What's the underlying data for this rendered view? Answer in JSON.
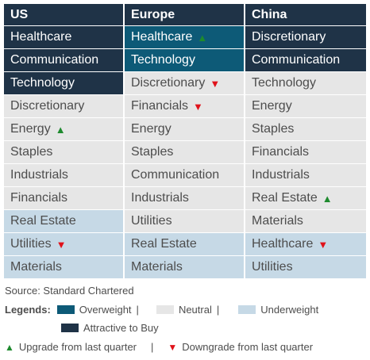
{
  "columns": [
    "US",
    "Europe",
    "China"
  ],
  "rows": [
    [
      {
        "label": "Healthcare",
        "status": "attr"
      },
      {
        "label": "Healthcare",
        "status": "over",
        "change": "up"
      },
      {
        "label": "Discretionary",
        "status": "attr"
      }
    ],
    [
      {
        "label": "Communication",
        "status": "attr"
      },
      {
        "label": "Technology",
        "status": "over"
      },
      {
        "label": "Communication",
        "status": "attr"
      }
    ],
    [
      {
        "label": "Technology",
        "status": "attr"
      },
      {
        "label": "Discretionary",
        "status": "neu",
        "change": "down"
      },
      {
        "label": "Technology",
        "status": "neu"
      }
    ],
    [
      {
        "label": "Discretionary",
        "status": "neu"
      },
      {
        "label": "Financials",
        "status": "neu",
        "change": "down"
      },
      {
        "label": "Energy",
        "status": "neu"
      }
    ],
    [
      {
        "label": "Energy",
        "status": "neu",
        "change": "up"
      },
      {
        "label": "Energy",
        "status": "neu"
      },
      {
        "label": "Staples",
        "status": "neu"
      }
    ],
    [
      {
        "label": "Staples",
        "status": "neu"
      },
      {
        "label": "Staples",
        "status": "neu"
      },
      {
        "label": "Financials",
        "status": "neu"
      }
    ],
    [
      {
        "label": "Industrials",
        "status": "neu"
      },
      {
        "label": "Communication",
        "status": "neu"
      },
      {
        "label": "Industrials",
        "status": "neu"
      }
    ],
    [
      {
        "label": "Financials",
        "status": "neu"
      },
      {
        "label": "Industrials",
        "status": "neu"
      },
      {
        "label": "Real Estate",
        "status": "neu",
        "change": "up"
      }
    ],
    [
      {
        "label": "Real Estate",
        "status": "under"
      },
      {
        "label": "Utilities",
        "status": "neu"
      },
      {
        "label": "Materials",
        "status": "neu"
      }
    ],
    [
      {
        "label": "Utilities",
        "status": "under",
        "change": "down"
      },
      {
        "label": "Real Estate",
        "status": "under"
      },
      {
        "label": "Healthcare",
        "status": "under",
        "change": "down"
      }
    ],
    [
      {
        "label": "Materials",
        "status": "under"
      },
      {
        "label": "Materials",
        "status": "under"
      },
      {
        "label": "Utilities",
        "status": "under"
      }
    ]
  ],
  "source": "Source: Standard Chartered",
  "legend": {
    "title": "Legends:",
    "overweight": "Overweight",
    "neutral": "Neutral",
    "underweight": "Underweight",
    "attractive": "Attractive to Buy",
    "separator": "|",
    "upgrade": "Upgrade from last quarter",
    "downgrade": "Downgrade from last quarter",
    "up_glyph": "▲",
    "down_glyph": "▼"
  },
  "colors": {
    "attractive": "#1f3347",
    "overweight": "#0d5a77",
    "neutral": "#e6e6e6",
    "underweight": "#c6d9e6",
    "upgrade": "#1e8a2e",
    "downgrade": "#e0121a"
  }
}
